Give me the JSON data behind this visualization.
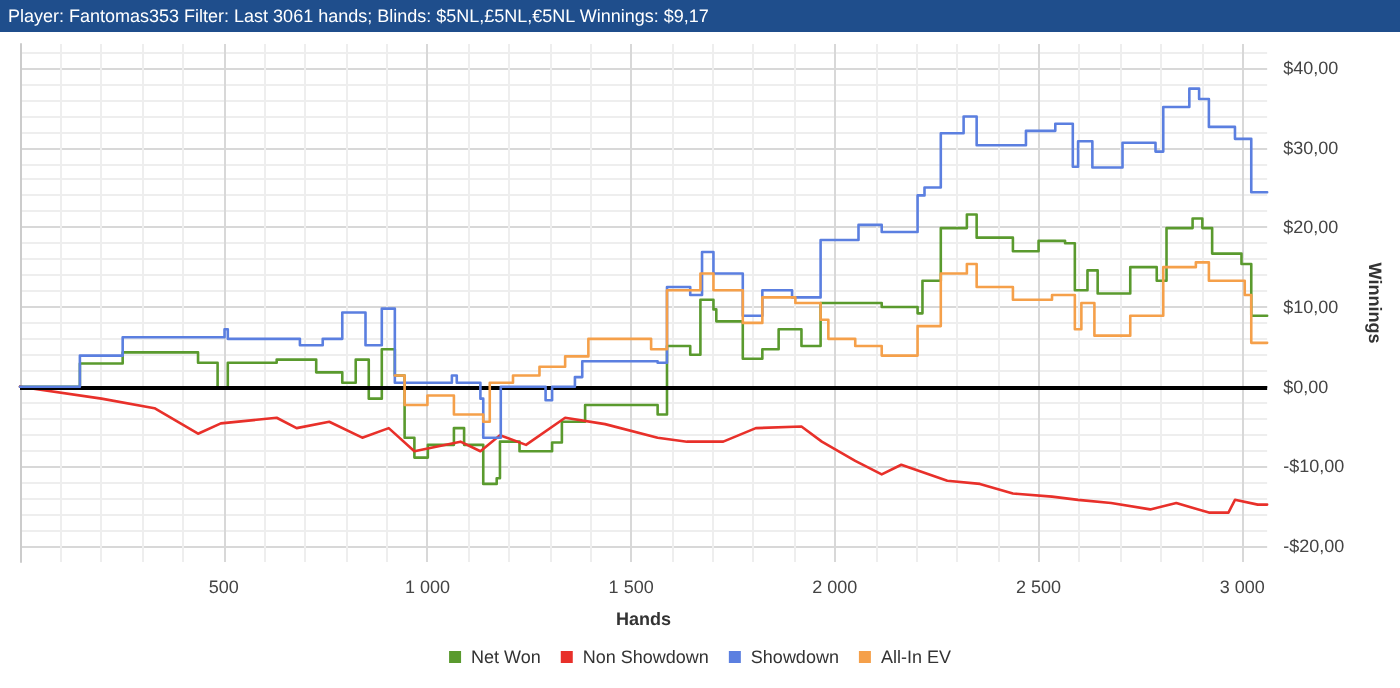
{
  "chart_data": {
    "type": "step",
    "title": "Player: Fantomas353 Filter: Last 3061 hands; Blinds: $5NL,£5NL,€5NL Winnings: $9,17",
    "xlabel": "Hands",
    "ylabel": "Winnings",
    "xlim": [
      0,
      3061
    ],
    "xticks": [
      500,
      {
        "value": 1000,
        "label": "1 000"
      },
      {
        "value": 1500,
        "label": "1 500"
      },
      {
        "value": 2000,
        "label": "2 000"
      },
      {
        "value": 2500,
        "label": "2 500"
      },
      {
        "value": 3000,
        "label": "3 000"
      }
    ],
    "ylim": [
      -22,
      43
    ],
    "yticks": [
      {
        "value": -20,
        "label": "-$20,00"
      },
      {
        "value": -10,
        "label": "-$10,00"
      },
      {
        "value": 0,
        "label": "$0,00"
      },
      {
        "value": 10,
        "label": "$10,00"
      },
      {
        "value": 20,
        "label": "$20,00"
      },
      {
        "value": 30,
        "label": "$30,00"
      },
      {
        "value": 40,
        "label": "$40,00"
      }
    ],
    "grid": true,
    "legend": "bottom",
    "marker": "none",
    "ref_lines": [
      {
        "axis": "y",
        "value": 0,
        "color": "#000000"
      }
    ],
    "series": [
      {
        "name": "Net Won",
        "color": "#5a9a2e",
        "x": [
          0,
          147,
          252,
          437,
          485,
          510,
          630,
          727,
          791,
          824,
          856,
          888,
          920,
          944,
          968,
          1001,
          1065,
          1090,
          1137,
          1170,
          1178,
          1226,
          1306,
          1330,
          1387,
          1565,
          1588,
          1645,
          1670,
          1702,
          1709,
          1774,
          1822,
          1862,
          1918,
          1965,
          2115,
          2203,
          2215,
          2260,
          2324,
          2348,
          2437,
          2500,
          2565,
          2589,
          2620,
          2645,
          2725,
          2790,
          2814,
          2878,
          2902,
          2926,
          2998,
          3022,
          3061
        ],
        "values": [
          0,
          2.9,
          4.3,
          3.0,
          -0.2,
          3.0,
          3.4,
          1.8,
          0.5,
          3.4,
          -1.5,
          4.7,
          1.4,
          -6.4,
          -8.9,
          -7.3,
          -5.2,
          -7.3,
          -12.2,
          -11.5,
          -6.9,
          -8.1,
          -7.0,
          -4.4,
          -2.3,
          -3.5,
          5.1,
          4.0,
          10.9,
          9.7,
          8.2,
          3.5,
          4.7,
          7.2,
          5.1,
          10.5,
          10.0,
          9.2,
          13.3,
          19.9,
          21.6,
          18.7,
          17.0,
          18.3,
          18.0,
          12.1,
          14.6,
          11.7,
          15.0,
          13.3,
          19.9,
          21.1,
          19.9,
          16.7,
          15.4,
          8.9,
          8.9
        ]
      },
      {
        "name": "Non Showdown",
        "type": "line",
        "color": "#e8302a",
        "x": [
          0,
          200,
          330,
          437,
          493,
          630,
          679,
          759,
          840,
          905,
          968,
          1081,
          1130,
          1178,
          1242,
          1338,
          1436,
          1565,
          1637,
          1726,
          1806,
          1918,
          1968,
          2050,
          2115,
          2163,
          2276,
          2356,
          2437,
          2533,
          2597,
          2678,
          2774,
          2838,
          2918,
          2966,
          2982,
          3038,
          3061
        ],
        "values": [
          0,
          -1.5,
          -2.7,
          -5.9,
          -4.6,
          -3.9,
          -5.2,
          -4.4,
          -6.4,
          -5.2,
          -8.1,
          -6.9,
          -8.1,
          -6.1,
          -7.3,
          -3.9,
          -4.7,
          -6.4,
          -6.9,
          -6.9,
          -5.2,
          -5.0,
          -6.9,
          -9.3,
          -11.0,
          -9.8,
          -11.8,
          -12.2,
          -13.4,
          -13.8,
          -14.2,
          -14.6,
          -15.4,
          -14.6,
          -15.8,
          -15.8,
          -14.2,
          -14.8,
          -14.8
        ]
      },
      {
        "name": "Showdown",
        "color": "#5b7fe0",
        "x": [
          0,
          147,
          252,
          502,
          510,
          687,
          743,
          791,
          848,
          888,
          920,
          1060,
          1072,
          1130,
          1137,
          1180,
          1290,
          1306,
          1362,
          1380,
          1565,
          1588,
          1645,
          1674,
          1702,
          1774,
          1822,
          1895,
          1965,
          2058,
          2115,
          2203,
          2220,
          2260,
          2316,
          2348,
          2469,
          2541,
          2584,
          2597,
          2632,
          2706,
          2787,
          2806,
          2870,
          2894,
          2918,
          2982,
          3022,
          3061
        ],
        "values": [
          0,
          3.9,
          6.2,
          7.2,
          6.0,
          5.2,
          6.0,
          9.3,
          5.2,
          9.8,
          0.5,
          1.4,
          0.5,
          -1.5,
          -6.4,
          0,
          -1.7,
          0,
          1.2,
          3.2,
          3.0,
          12.5,
          11.5,
          16.9,
          14.2,
          8.9,
          12.1,
          11.2,
          18.4,
          20.3,
          19.4,
          24.0,
          25.0,
          31.8,
          33.9,
          30.3,
          32.1,
          33.0,
          27.6,
          30.8,
          27.5,
          30.6,
          29.5,
          35.1,
          37.4,
          36.1,
          32.6,
          31.1,
          24.4,
          24.4
        ]
      },
      {
        "name": "All-In EV",
        "color": "#f5a04a",
        "x": [
          920,
          944,
          1000,
          1065,
          1137,
          1153,
          1210,
          1275,
          1338,
          1395,
          1549,
          1588,
          1670,
          1702,
          1774,
          1822,
          1903,
          1965,
          1984,
          2050,
          2115,
          2203,
          2260,
          2324,
          2348,
          2437,
          2533,
          2589,
          2605,
          2637,
          2725,
          2806,
          2886,
          2918,
          3006,
          3022,
          3061
        ],
        "values": [
          1.4,
          -2.3,
          -1.1,
          -3.5,
          -4.4,
          0.5,
          1.4,
          2.5,
          3.8,
          6.0,
          4.7,
          12.1,
          14.2,
          12.1,
          8.0,
          11.2,
          10.5,
          8.4,
          6.0,
          5.1,
          3.9,
          7.6,
          14.2,
          15.4,
          12.5,
          10.9,
          11.5,
          7.2,
          10.5,
          6.4,
          8.9,
          15.0,
          15.6,
          13.3,
          11.5,
          5.5,
          5.5
        ]
      }
    ]
  }
}
